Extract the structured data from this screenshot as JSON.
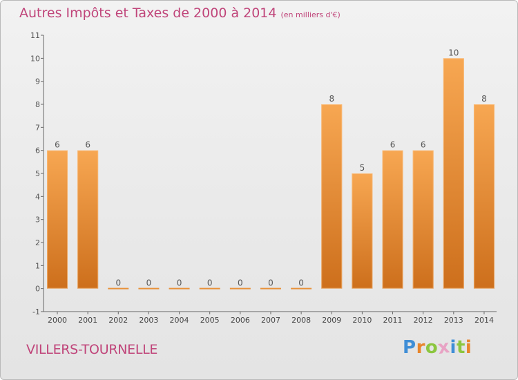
{
  "header": {
    "title": "Autres Impôts et Taxes de 2000 à 2014",
    "unit": "(en milliers d'€)"
  },
  "footer": {
    "commune": "VILLERS-TOURNELLE",
    "logo": {
      "letters": [
        "P",
        "r",
        "o",
        "x",
        "i",
        "t",
        "i"
      ],
      "colors": [
        "#3f8ed6",
        "#e8852b",
        "#8cc63f",
        "#e8a3c4",
        "#3f8ed6",
        "#8cc63f",
        "#e8852b"
      ]
    }
  },
  "colors": {
    "title": "#c0457a",
    "bar_light": "#f7a752",
    "bar_dark": "#cd6f1c",
    "axis": "#666666"
  },
  "chart_data": {
    "type": "bar",
    "title": "Autres Impôts et Taxes de 2000 à 2014",
    "subtitle": "(en milliers d'€)",
    "categories": [
      "2000",
      "2001",
      "2002",
      "2003",
      "2004",
      "2005",
      "2006",
      "2007",
      "2008",
      "2009",
      "2010",
      "2011",
      "2012",
      "2013",
      "2014"
    ],
    "values": [
      6,
      6,
      0,
      0,
      0,
      0,
      0,
      0,
      0,
      8,
      5,
      6,
      6,
      10,
      8
    ],
    "data_labels": [
      "6",
      "6",
      "0",
      "0",
      "0",
      "0",
      "0",
      "0",
      "0",
      "8",
      "5",
      "6",
      "6",
      "10",
      "8"
    ],
    "yticks": [
      "-1",
      "0",
      "1",
      "2",
      "3",
      "4",
      "5",
      "6",
      "7",
      "8",
      "9",
      "10",
      "11"
    ],
    "ylim": [
      -1,
      11
    ],
    "grid": false,
    "legend": "none"
  }
}
